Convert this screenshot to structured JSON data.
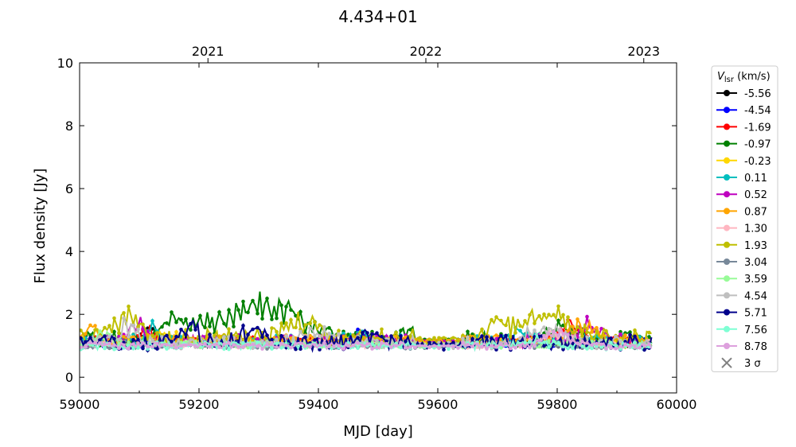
{
  "chart_data": {
    "type": "line",
    "title": "4.434+01",
    "xlabel": "MJD [day]",
    "ylabel": "Flux density [Jy]",
    "xlim": [
      59000,
      60000
    ],
    "ylim": [
      -0.5,
      10
    ],
    "x_ticks": [
      "59000",
      "59200",
      "59400",
      "59600",
      "59800",
      "60000"
    ],
    "y_ticks": [
      "0",
      "2",
      "4",
      "6",
      "8",
      "10"
    ],
    "top_axis": {
      "ticks": [
        {
          "label": "2021",
          "mjd": 59215
        },
        {
          "label": "2022",
          "mjd": 59580
        },
        {
          "label": "2023",
          "mjd": 59945
        }
      ]
    },
    "legend": {
      "title_main": "V",
      "title_sub": "lsr",
      "title_unit": " (km/s)",
      "placement": "outside-right",
      "sigma_label": "3 σ",
      "sigma_color": "#808080"
    },
    "series": [
      {
        "name": "-5.56",
        "color": "#000000",
        "base": 1.1,
        "amp": 0.15,
        "bumps": [
          [
            59120,
            0.4,
            20
          ],
          [
            59470,
            0.3,
            15
          ]
        ]
      },
      {
        "name": "-4.54",
        "color": "#0000ff",
        "base": 1.1,
        "amp": 0.15,
        "bumps": [
          [
            59610,
            0.4,
            8
          ],
          [
            59470,
            0.3,
            15
          ]
        ]
      },
      {
        "name": "-1.69",
        "color": "#ff0000",
        "base": 1.15,
        "amp": 0.15,
        "bumps": [
          [
            59820,
            0.5,
            25
          ],
          [
            59110,
            0.4,
            15
          ]
        ]
      },
      {
        "name": "-0.97",
        "color": "#008000",
        "base": 1.2,
        "amp": 0.25,
        "bumps": [
          [
            59300,
            1.1,
            90
          ],
          [
            59160,
            0.5,
            30
          ],
          [
            59560,
            0.3,
            30
          ],
          [
            59810,
            0.4,
            30
          ]
        ]
      },
      {
        "name": "-0.23",
        "color": "#ffd700",
        "base": 1.15,
        "amp": 0.15,
        "bumps": [
          [
            59150,
            0.3,
            20
          ]
        ]
      },
      {
        "name": "0.11",
        "color": "#00bfbf",
        "base": 1.15,
        "amp": 0.2,
        "bumps": [
          [
            59120,
            0.5,
            10
          ],
          [
            59470,
            0.3,
            20
          ],
          [
            59740,
            0.3,
            20
          ]
        ]
      },
      {
        "name": "0.52",
        "color": "#bf00bf",
        "base": 1.15,
        "amp": 0.2,
        "bumps": [
          [
            59100,
            0.5,
            20
          ],
          [
            59850,
            0.5,
            30
          ]
        ]
      },
      {
        "name": "0.87",
        "color": "#ffa500",
        "base": 1.2,
        "amp": 0.15,
        "bumps": [
          [
            59020,
            0.4,
            15
          ],
          [
            59840,
            0.4,
            30
          ]
        ]
      },
      {
        "name": "1.30",
        "color": "#ffb6c1",
        "base": 1.05,
        "amp": 0.12,
        "bumps": [
          [
            59800,
            0.3,
            40
          ]
        ]
      },
      {
        "name": "1.93",
        "color": "#bfbf00",
        "base": 1.25,
        "amp": 0.3,
        "bumps": [
          [
            59080,
            0.8,
            25
          ],
          [
            59380,
            0.5,
            40
          ],
          [
            59780,
            0.7,
            60
          ],
          [
            59700,
            0.5,
            15
          ]
        ]
      },
      {
        "name": "3.04",
        "color": "#778899",
        "base": 1.0,
        "amp": 0.1,
        "bumps": []
      },
      {
        "name": "3.59",
        "color": "#98fb98",
        "base": 1.05,
        "amp": 0.12,
        "bumps": [
          [
            59040,
            0.3,
            20
          ]
        ]
      },
      {
        "name": "4.54",
        "color": "#bfbfbf",
        "base": 1.1,
        "amp": 0.2,
        "bumps": [
          [
            59080,
            0.5,
            20
          ],
          [
            59400,
            0.4,
            30
          ],
          [
            59780,
            0.4,
            40
          ]
        ]
      },
      {
        "name": "5.71",
        "color": "#00008b",
        "base": 1.1,
        "amp": 0.25,
        "bumps": [
          [
            59180,
            0.6,
            20
          ],
          [
            59290,
            0.4,
            30
          ],
          [
            59470,
            0.3,
            20
          ]
        ]
      },
      {
        "name": "7.56",
        "color": "#7fffd4",
        "base": 1.0,
        "amp": 0.12,
        "bumps": [
          [
            59760,
            0.2,
            30
          ]
        ]
      },
      {
        "name": "8.78",
        "color": "#dda0dd",
        "base": 1.0,
        "amp": 0.1,
        "bumps": [
          [
            59800,
            0.4,
            30
          ]
        ]
      }
    ]
  }
}
